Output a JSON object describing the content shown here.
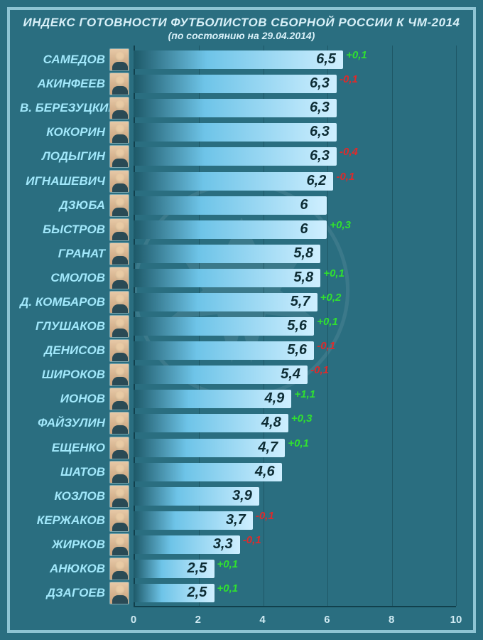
{
  "title": "ИНДЕКС ГОТОВНОСТИ ФУТБОЛИСТОВ СБОРНОЙ РОССИИ К ЧМ-2014",
  "subtitle": "(по состоянию на 29.04.2014)",
  "chart": {
    "type": "bar",
    "xlim": [
      0,
      10
    ],
    "xticks": [
      0,
      2,
      4,
      6,
      8,
      10
    ],
    "background_color": "#2a6e80",
    "frame_color": "#8fc5d4",
    "axis_color": "#11404c",
    "grid_color": "rgba(17,64,76,0.5)",
    "name_color": "#a2e8fb",
    "tick_color": "#cfeaf2",
    "value_color": "#0d2c34",
    "delta_up_color": "#30e030",
    "delta_down_color": "#e02a2a",
    "bar_gradient": [
      "#1d5968",
      "#6ec4e8",
      "#cfefff"
    ],
    "title_fontsize": 17,
    "name_fontsize": 17,
    "value_fontsize": 20,
    "delta_fontsize": 15,
    "tick_fontsize": 15
  },
  "players": [
    {
      "name": "САМЕДОВ",
      "value": 6.5,
      "value_str": "6,5",
      "delta": 0.1,
      "delta_str": "+0,1"
    },
    {
      "name": "АКИНФЕЕВ",
      "value": 6.3,
      "value_str": "6,3",
      "delta": -0.1,
      "delta_str": "-0,1"
    },
    {
      "name": "В. БЕРЕЗУЦКИЙ",
      "value": 6.3,
      "value_str": "6,3",
      "delta": null,
      "delta_str": ""
    },
    {
      "name": "КОКОРИН",
      "value": 6.3,
      "value_str": "6,3",
      "delta": null,
      "delta_str": ""
    },
    {
      "name": "ЛОДЫГИН",
      "value": 6.3,
      "value_str": "6,3",
      "delta": -0.4,
      "delta_str": "-0,4"
    },
    {
      "name": "ИГНАШЕВИЧ",
      "value": 6.2,
      "value_str": "6,2",
      "delta": -0.1,
      "delta_str": "-0,1"
    },
    {
      "name": "ДЗЮБА",
      "value": 6.0,
      "value_str": "6",
      "delta": null,
      "delta_str": ""
    },
    {
      "name": "БЫСТРОВ",
      "value": 6.0,
      "value_str": "6",
      "delta": 0.3,
      "delta_str": "+0,3"
    },
    {
      "name": "ГРАНАТ",
      "value": 5.8,
      "value_str": "5,8",
      "delta": null,
      "delta_str": ""
    },
    {
      "name": "СМОЛОВ",
      "value": 5.8,
      "value_str": "5,8",
      "delta": 0.1,
      "delta_str": "+0,1"
    },
    {
      "name": "Д. КОМБАРОВ",
      "value": 5.7,
      "value_str": "5,7",
      "delta": 0.2,
      "delta_str": "+0,2"
    },
    {
      "name": "ГЛУШАКОВ",
      "value": 5.6,
      "value_str": "5,6",
      "delta": 0.1,
      "delta_str": "+0,1"
    },
    {
      "name": "ДЕНИСОВ",
      "value": 5.6,
      "value_str": "5,6",
      "delta": -0.1,
      "delta_str": "-0,1"
    },
    {
      "name": "ШИРОКОВ",
      "value": 5.4,
      "value_str": "5,4",
      "delta": -0.1,
      "delta_str": "-0,1"
    },
    {
      "name": "ИОНОВ",
      "value": 4.9,
      "value_str": "4,9",
      "delta": 1.1,
      "delta_str": "+1,1"
    },
    {
      "name": "ФАЙЗУЛИН",
      "value": 4.8,
      "value_str": "4,8",
      "delta": 0.3,
      "delta_str": "+0,3"
    },
    {
      "name": "ЕЩЕНКО",
      "value": 4.7,
      "value_str": "4,7",
      "delta": 0.1,
      "delta_str": "+0,1"
    },
    {
      "name": "ШАТОВ",
      "value": 4.6,
      "value_str": "4,6",
      "delta": null,
      "delta_str": ""
    },
    {
      "name": "КОЗЛОВ",
      "value": 3.9,
      "value_str": "3,9",
      "delta": null,
      "delta_str": ""
    },
    {
      "name": "КЕРЖАКОВ",
      "value": 3.7,
      "value_str": "3,7",
      "delta": -0.1,
      "delta_str": "-0,1"
    },
    {
      "name": "ЖИРКОВ",
      "value": 3.3,
      "value_str": "3,3",
      "delta": -0.1,
      "delta_str": "-0,1"
    },
    {
      "name": "АНЮКОВ",
      "value": 2.5,
      "value_str": "2,5",
      "delta": 0.1,
      "delta_str": "+0,1"
    },
    {
      "name": "ДЗАГОЕВ",
      "value": 2.5,
      "value_str": "2,5",
      "delta": 0.1,
      "delta_str": "+0,1"
    }
  ]
}
